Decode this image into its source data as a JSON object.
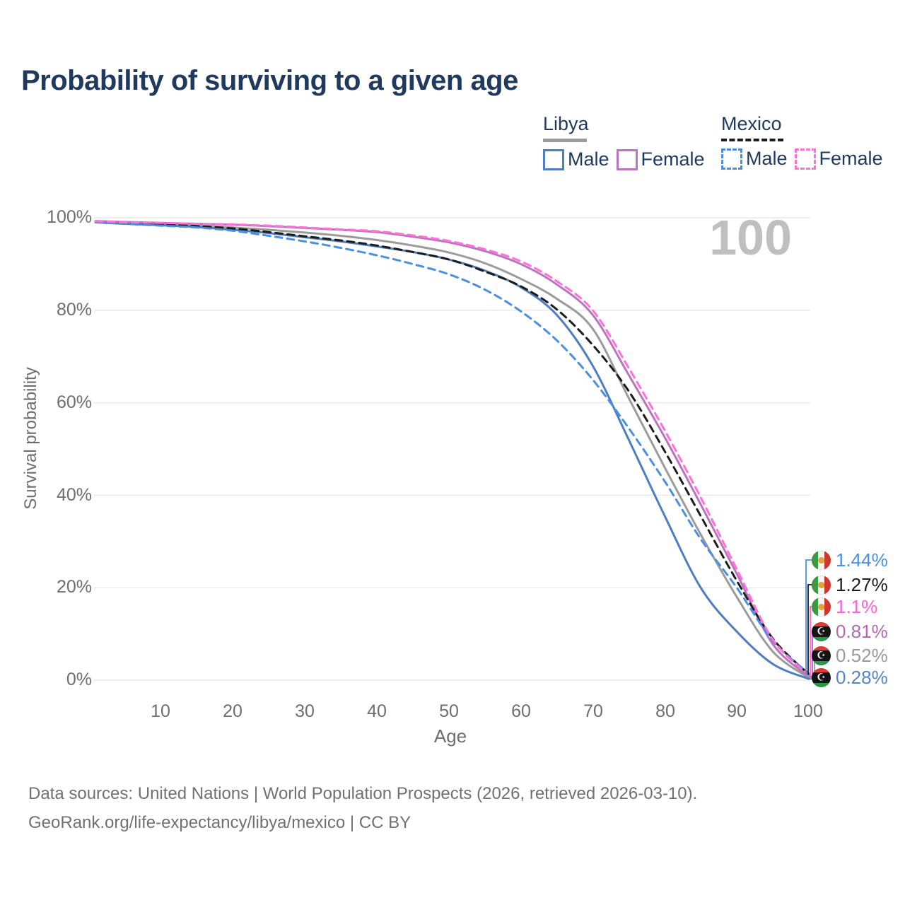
{
  "header": {
    "title": "Probability of surviving to a given age"
  },
  "legend": {
    "groups": [
      {
        "country": "Libya",
        "line_style": "solid",
        "header_line_color": "#9b9b9b",
        "items": [
          {
            "label": "Male",
            "color": "#4d7ec0"
          },
          {
            "label": "Female",
            "color": "#bb74c0"
          }
        ]
      },
      {
        "country": "Mexico",
        "line_style": "dashed",
        "header_line_color": "#1c1c1c",
        "items": [
          {
            "label": "Male",
            "color": "#4a90e2"
          },
          {
            "label": "Female",
            "color": "#ff70d8"
          }
        ]
      }
    ]
  },
  "watermark": {
    "text": "100"
  },
  "chart_data": {
    "type": "line",
    "title": "Probability of surviving to a given age",
    "xlabel": "Age",
    "ylabel": "Survival probability",
    "xlim": [
      0,
      100
    ],
    "ylim": [
      0,
      100
    ],
    "grid": "horizontal",
    "legend_position": "top-right",
    "x_ticks": [
      10,
      20,
      30,
      40,
      50,
      60,
      70,
      80,
      90,
      100
    ],
    "y_ticks_pct": [
      100,
      80,
      60,
      40,
      20,
      0
    ],
    "y_tick_labels": [
      "100%",
      "80%",
      "60%",
      "40%",
      "20%",
      "0%"
    ],
    "series": [
      {
        "name": "Libya Total",
        "country": "Libya",
        "dash": "solid",
        "color": "#9b9b9b",
        "width": 3,
        "end_label": "0.52%",
        "points": [
          [
            1,
            99.1
          ],
          [
            5,
            98.85
          ],
          [
            10,
            98.6
          ],
          [
            15,
            98.3
          ],
          [
            20,
            97.9
          ],
          [
            25,
            97.4
          ],
          [
            30,
            96.8
          ],
          [
            35,
            96.1
          ],
          [
            40,
            95.2
          ],
          [
            45,
            94.0
          ],
          [
            50,
            92.5
          ],
          [
            55,
            90.2
          ],
          [
            60,
            86.8
          ],
          [
            65,
            82.5
          ],
          [
            70,
            76.0
          ],
          [
            75,
            61.0
          ],
          [
            80,
            46.0
          ],
          [
            85,
            31.5
          ],
          [
            90,
            18.0
          ],
          [
            95,
            6.2
          ],
          [
            100,
            0.52
          ]
        ]
      },
      {
        "name": "Libya Male",
        "country": "Libya",
        "dash": "solid",
        "color": "#4d7ec0",
        "width": 3,
        "end_label": "0.28%",
        "points": [
          [
            1,
            99.0
          ],
          [
            5,
            98.7
          ],
          [
            10,
            98.4
          ],
          [
            15,
            98.0
          ],
          [
            20,
            97.4
          ],
          [
            25,
            96.7
          ],
          [
            30,
            95.8
          ],
          [
            35,
            94.9
          ],
          [
            40,
            93.8
          ],
          [
            45,
            92.6
          ],
          [
            50,
            91.0
          ],
          [
            55,
            88.6
          ],
          [
            60,
            85.0
          ],
          [
            65,
            79.0
          ],
          [
            70,
            68.0
          ],
          [
            75,
            52.0
          ],
          [
            80,
            35.5
          ],
          [
            85,
            20.0
          ],
          [
            90,
            10.5
          ],
          [
            95,
            3.5
          ],
          [
            100,
            0.28
          ]
        ]
      },
      {
        "name": "Libya Female",
        "country": "Libya",
        "dash": "solid",
        "color": "#bb74c0",
        "width": 3,
        "end_label": "0.81%",
        "points": [
          [
            1,
            99.3
          ],
          [
            5,
            99.1
          ],
          [
            10,
            98.9
          ],
          [
            15,
            98.7
          ],
          [
            20,
            98.5
          ],
          [
            25,
            98.2
          ],
          [
            30,
            97.8
          ],
          [
            35,
            97.4
          ],
          [
            40,
            96.9
          ],
          [
            45,
            95.9
          ],
          [
            50,
            94.7
          ],
          [
            55,
            92.8
          ],
          [
            60,
            90.0
          ],
          [
            65,
            85.6
          ],
          [
            70,
            79.0
          ],
          [
            75,
            66.0
          ],
          [
            80,
            52.5
          ],
          [
            85,
            38.0
          ],
          [
            90,
            23.0
          ],
          [
            95,
            7.8
          ],
          [
            100,
            0.81
          ]
        ]
      },
      {
        "name": "Mexico Total",
        "country": "Mexico",
        "dash": "dashed",
        "color": "#1c1c1c",
        "width": 3,
        "end_label": "1.27%",
        "points": [
          [
            1,
            99.2
          ],
          [
            5,
            98.9
          ],
          [
            10,
            98.6
          ],
          [
            15,
            98.2
          ],
          [
            20,
            97.7
          ],
          [
            25,
            96.9
          ],
          [
            30,
            96.0
          ],
          [
            35,
            95.1
          ],
          [
            40,
            94.0
          ],
          [
            45,
            92.6
          ],
          [
            50,
            91.0
          ],
          [
            55,
            88.4
          ],
          [
            60,
            85.2
          ],
          [
            65,
            80.2
          ],
          [
            70,
            72.5
          ],
          [
            75,
            62.5
          ],
          [
            80,
            49.5
          ],
          [
            85,
            35.5
          ],
          [
            90,
            21.5
          ],
          [
            95,
            9.0
          ],
          [
            100,
            1.27
          ]
        ]
      },
      {
        "name": "Mexico Male",
        "country": "Mexico",
        "dash": "dashed",
        "color": "#4a90e2",
        "width": 3,
        "end_label": "1.44%",
        "points": [
          [
            1,
            99.1
          ],
          [
            5,
            98.7
          ],
          [
            10,
            98.3
          ],
          [
            15,
            97.9
          ],
          [
            20,
            97.2
          ],
          [
            25,
            96.1
          ],
          [
            30,
            94.9
          ],
          [
            35,
            93.5
          ],
          [
            40,
            91.9
          ],
          [
            45,
            90.0
          ],
          [
            50,
            87.8
          ],
          [
            55,
            84.5
          ],
          [
            60,
            79.8
          ],
          [
            65,
            73.5
          ],
          [
            70,
            65.0
          ],
          [
            75,
            54.5
          ],
          [
            80,
            43.0
          ],
          [
            85,
            30.5
          ],
          [
            90,
            20.0
          ],
          [
            95,
            8.5
          ],
          [
            100,
            1.44
          ]
        ]
      },
      {
        "name": "Mexico Female",
        "country": "Mexico",
        "dash": "dashed",
        "color": "#ff70d8",
        "width": 3,
        "end_label": "1.1%",
        "points": [
          [
            1,
            99.25
          ],
          [
            5,
            99.05
          ],
          [
            10,
            98.9
          ],
          [
            15,
            98.7
          ],
          [
            20,
            98.55
          ],
          [
            25,
            98.3
          ],
          [
            30,
            97.9
          ],
          [
            35,
            97.5
          ],
          [
            40,
            97.1
          ],
          [
            45,
            96.2
          ],
          [
            50,
            95.0
          ],
          [
            55,
            93.2
          ],
          [
            60,
            90.6
          ],
          [
            65,
            86.3
          ],
          [
            70,
            80.0
          ],
          [
            75,
            67.5
          ],
          [
            80,
            54.0
          ],
          [
            85,
            39.5
          ],
          [
            90,
            24.0
          ],
          [
            95,
            8.8
          ],
          [
            100,
            1.1
          ]
        ]
      }
    ]
  },
  "annotations": [
    {
      "country": "Mexico",
      "series": "Mexico Male",
      "value": "1.44%",
      "color": "#4a90e2"
    },
    {
      "country": "Mexico",
      "series": "Mexico Total",
      "value": "1.27%",
      "color": "#1c1c1c"
    },
    {
      "country": "Mexico",
      "series": "Mexico Female",
      "value": "1.1%",
      "color": "#ff5fd7"
    },
    {
      "country": "Libya",
      "series": "Libya Female",
      "value": "0.81%",
      "color": "#b469b4"
    },
    {
      "country": "Libya",
      "series": "Libya Total",
      "value": "0.52%",
      "color": "#9b9b9b"
    },
    {
      "country": "Libya",
      "series": "Libya Male",
      "value": "0.28%",
      "color": "#5585c8"
    }
  ],
  "footer": {
    "line1": "Data sources: United Nations | World Population Prospects (2026, retrieved 2026-03-10).",
    "line2": "GeoRank.org/life-expectancy/libya/mexico | CC BY"
  }
}
